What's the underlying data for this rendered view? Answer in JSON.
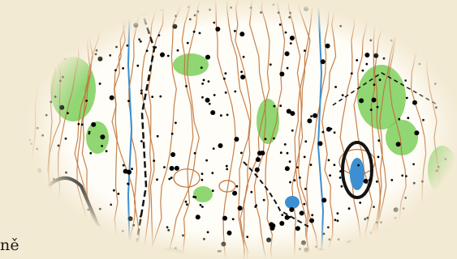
{
  "caption": {
    "text": "ně"
  },
  "map": {
    "colors": {
      "paper": "#f3ead3",
      "contour": "#c0733a",
      "green": "#7ccf5c",
      "water": "#3c8fd0",
      "track": "#141414",
      "boulder": "#000000"
    },
    "features": [
      {
        "name": "contours",
        "kind": "brown contour lines"
      },
      {
        "name": "boulders",
        "kind": "black dots"
      },
      {
        "name": "vegetation",
        "kind": "green patches"
      },
      {
        "name": "stream",
        "kind": "blue lines"
      },
      {
        "name": "pond",
        "kind": "blue water body"
      },
      {
        "name": "paths",
        "kind": "black tracks"
      }
    ]
  }
}
